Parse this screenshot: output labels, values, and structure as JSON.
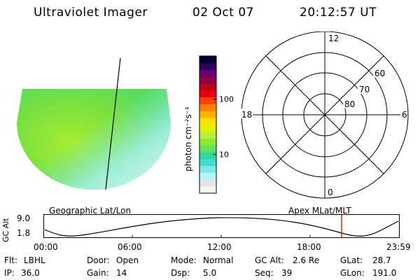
{
  "header": {
    "instrument": "Ultraviolet Imager",
    "date": "02 Oct 07",
    "time": "20:12:57 UT"
  },
  "colorbar": {
    "label": "photon cm⁻²s⁻¹",
    "ticks": [
      {
        "value": 10,
        "label": "10"
      },
      {
        "value": 100,
        "label": "100"
      }
    ],
    "colors": [
      "#f4f4f4",
      "#e4e4e4",
      "#b8f4f4",
      "#7ce8e8",
      "#40dcd0",
      "#30d8a0",
      "#60e060",
      "#90e830",
      "#b8f038",
      "#e0f000",
      "#ffe000",
      "#ffb000",
      "#ff8000",
      "#ff4000",
      "#e80010",
      "#c00020",
      "#900048",
      "#6a0070",
      "#300060",
      "#000030"
    ]
  },
  "maps": {
    "left_label": "Geographic Lat/Lon",
    "right_label": "Apex MLat/MLT"
  },
  "polar": {
    "mlt_labels": {
      "top": "12",
      "bottom": "0",
      "left": "18",
      "right": "6"
    },
    "lat_labels": [
      "60",
      "70",
      "80"
    ]
  },
  "orbit_plot": {
    "ylabel": "GC Alt",
    "yticks": [
      "9.0",
      "1.8"
    ],
    "xticks": [
      "00:00",
      "06:00",
      "12:00",
      "18:00",
      "23:59"
    ],
    "marker_color": "#cc2200"
  },
  "info": {
    "row1": [
      {
        "label": "Flt:",
        "value": "LBHL"
      },
      {
        "label": "Door:",
        "value": "Open"
      },
      {
        "label": "Mode:",
        "value": "Normal"
      },
      {
        "label": "GC Alt:",
        "value": "2.6 Re"
      },
      {
        "label": "GLat:",
        "value": "28.7"
      }
    ],
    "row2": [
      {
        "label": "IP:",
        "value": "36.0"
      },
      {
        "label": "Gain:",
        "value": "14"
      },
      {
        "label": "Dsp:",
        "value": "5.0"
      },
      {
        "label": "Seq:",
        "value": "39"
      },
      {
        "label": "GLon:",
        "value": "191.0"
      }
    ]
  }
}
